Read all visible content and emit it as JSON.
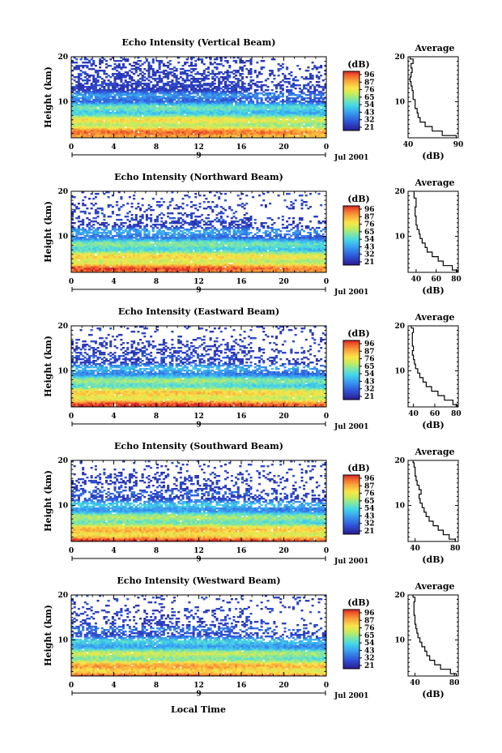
{
  "figure": {
    "xlabel": "Local Time",
    "date_label": "Jul 2001",
    "day_label": "9"
  },
  "chart_data": [
    {
      "type": "heatmap",
      "title": "Echo Intensity (Vertical Beam)",
      "xlabel": "Local Time",
      "ylabel": "Height (km)",
      "x_ticks": [
        "0",
        "4",
        "8",
        "12",
        "16",
        "20",
        "0"
      ],
      "y_ticks": [
        "10",
        "20"
      ],
      "xlim": [
        0,
        24
      ],
      "ylim": [
        2,
        20
      ],
      "colorbar": {
        "label": "(dB)",
        "ticks": [
          "96",
          "87",
          "76",
          "65",
          "54",
          "43",
          "32",
          "21"
        ],
        "range": [
          21,
          96
        ]
      },
      "profile": {
        "title": "Average",
        "xlabel": "(dB)",
        "x_ticks": [
          "40",
          "90"
        ],
        "y_ticks": [
          "10",
          "20"
        ],
        "xlim": [
          40,
          90
        ],
        "heights": [
          2,
          3,
          4,
          5,
          6,
          7,
          8,
          9,
          10,
          11,
          12,
          13,
          14,
          15,
          16,
          17,
          18,
          19,
          20
        ],
        "values": [
          88,
          74,
          64,
          57,
          52,
          50,
          49,
          47,
          47,
          45,
          45,
          44,
          43,
          42,
          43,
          44,
          43,
          45,
          42
        ]
      }
    },
    {
      "type": "heatmap",
      "title": "Echo Intensity (Northward Beam)",
      "xlabel": "Local Time",
      "ylabel": "Height (km)",
      "x_ticks": [
        "0",
        "4",
        "8",
        "12",
        "16",
        "20",
        "0"
      ],
      "y_ticks": [
        "10",
        "20"
      ],
      "xlim": [
        0,
        24
      ],
      "ylim": [
        2,
        20
      ],
      "colorbar": {
        "label": "(dB)",
        "ticks": [
          "96",
          "87",
          "76",
          "65",
          "54",
          "43",
          "32",
          "21"
        ],
        "range": [
          21,
          96
        ]
      },
      "profile": {
        "title": "Average",
        "xlabel": "(dB)",
        "x_ticks": [
          "40",
          "60",
          "80"
        ],
        "y_ticks": [
          "10",
          "20"
        ],
        "xlim": [
          32,
          82
        ],
        "heights": [
          2,
          3,
          4,
          5,
          6,
          7,
          8,
          9,
          10,
          11,
          12,
          13,
          14,
          15,
          16,
          17,
          18,
          19,
          20
        ],
        "values": [
          81,
          76,
          67,
          62,
          56,
          51,
          49,
          46,
          44,
          43,
          41,
          40,
          40,
          39,
          39,
          40,
          40,
          38,
          38
        ]
      }
    },
    {
      "type": "heatmap",
      "title": "Echo Intensity (Eastward Beam)",
      "xlabel": "Local Time",
      "ylabel": "Height (km)",
      "x_ticks": [
        "0",
        "4",
        "8",
        "12",
        "16",
        "20",
        "0"
      ],
      "y_ticks": [
        "10",
        "20"
      ],
      "xlim": [
        0,
        24
      ],
      "ylim": [
        2,
        20
      ],
      "colorbar": {
        "label": "(dB)",
        "ticks": [
          "96",
          "87",
          "76",
          "65",
          "54",
          "43",
          "32",
          "21"
        ],
        "range": [
          21,
          96
        ]
      },
      "profile": {
        "title": "Average",
        "xlabel": "(dB)",
        "x_ticks": [
          "40",
          "60",
          "80"
        ],
        "y_ticks": [
          "10",
          "20"
        ],
        "xlim": [
          35,
          82
        ],
        "heights": [
          2,
          3,
          4,
          5,
          6,
          7,
          8,
          9,
          10,
          11,
          12,
          13,
          14,
          15,
          16,
          17,
          18,
          19,
          20
        ],
        "values": [
          81,
          77,
          69,
          63,
          57,
          52,
          49,
          46,
          44,
          42,
          41,
          40,
          39,
          40,
          39,
          39,
          39,
          40,
          38
        ]
      }
    },
    {
      "type": "heatmap",
      "title": "Echo Intensity (Southward Beam)",
      "xlabel": "Local Time",
      "ylabel": "Height (km)",
      "x_ticks": [
        "0",
        "4",
        "8",
        "12",
        "16",
        "20",
        "0"
      ],
      "y_ticks": [
        "10",
        "20"
      ],
      "xlim": [
        0,
        24
      ],
      "ylim": [
        2,
        20
      ],
      "colorbar": {
        "label": "(dB)",
        "ticks": [
          "96",
          "87",
          "76",
          "65",
          "54",
          "43",
          "32",
          "21"
        ],
        "range": [
          21,
          96
        ]
      },
      "profile": {
        "title": "Average",
        "xlabel": "(dB)",
        "x_ticks": [
          "40",
          "80"
        ],
        "y_ticks": [
          "10",
          "20"
        ],
        "xlim": [
          33,
          83
        ],
        "heights": [
          2,
          3,
          4,
          5,
          6,
          7,
          8,
          9,
          10,
          11,
          12,
          13,
          14,
          15,
          16,
          17,
          18,
          19,
          20
        ],
        "values": [
          80,
          74,
          68,
          63,
          58,
          54,
          51,
          49,
          47,
          45,
          44,
          46,
          44,
          42,
          41,
          40,
          40,
          39,
          38
        ]
      }
    },
    {
      "type": "heatmap",
      "title": "Echo Intensity (Westward Beam)",
      "xlabel": "Local Time",
      "ylabel": "Height (km)",
      "x_ticks": [
        "0",
        "4",
        "8",
        "12",
        "16",
        "20",
        "0"
      ],
      "y_ticks": [
        "10",
        "20"
      ],
      "xlim": [
        0,
        24
      ],
      "ylim": [
        2,
        20
      ],
      "colorbar": {
        "label": "(dB)",
        "ticks": [
          "96",
          "87",
          "76",
          "65",
          "54",
          "43",
          "32",
          "21"
        ],
        "range": [
          21,
          96
        ]
      },
      "profile": {
        "title": "Average",
        "xlabel": "(dB)",
        "x_ticks": [
          "40",
          "80"
        ],
        "y_ticks": [
          "10",
          "20"
        ],
        "xlim": [
          33,
          84
        ],
        "heights": [
          2,
          3,
          4,
          5,
          6,
          7,
          8,
          9,
          10,
          11,
          12,
          13,
          14,
          15,
          16,
          17,
          18,
          19,
          20
        ],
        "values": [
          82,
          76,
          66,
          60,
          55,
          52,
          50,
          47,
          45,
          43,
          42,
          41,
          40,
          40,
          39,
          39,
          39,
          40,
          38
        ]
      }
    }
  ]
}
